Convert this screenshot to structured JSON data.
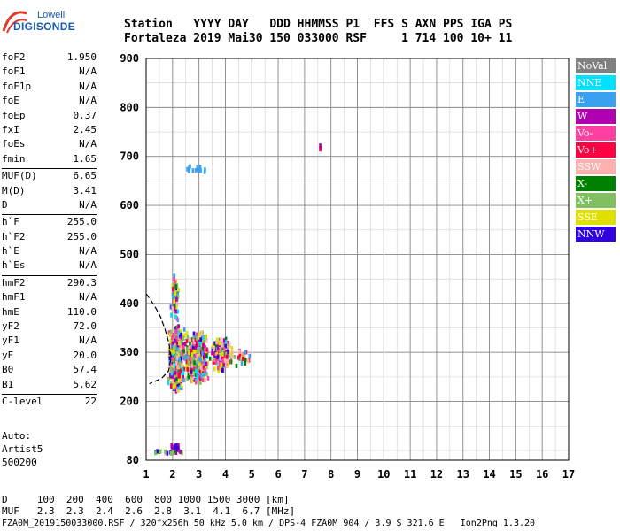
{
  "logo": {
    "line1": "Lowell",
    "line2": "DIGISONDE"
  },
  "header": {
    "labels": "Station   YYYY DAY   DDD HHMMSS P1  FFS S AXN PPS IGA PS",
    "values": "Fortaleza 2019 Mai30 150 033000 RSF     1 714 100 10+ 11"
  },
  "params": [
    {
      "group": [
        {
          "label": "foF2",
          "value": "1.950"
        },
        {
          "label": "foF1",
          "value": "N/A"
        },
        {
          "label": "foF1p",
          "value": "N/A"
        },
        {
          "label": "foE",
          "value": "N/A"
        },
        {
          "label": "foEp",
          "value": "0.37"
        },
        {
          "label": "fxI",
          "value": "2.45"
        },
        {
          "label": "foEs",
          "value": "N/A"
        },
        {
          "label": "fmin",
          "value": "1.65"
        }
      ]
    },
    {
      "group": [
        {
          "label": "MUF(D)",
          "value": "6.65"
        },
        {
          "label": "M(D)",
          "value": "3.41"
        },
        {
          "label": "D",
          "value": "N/A"
        }
      ]
    },
    {
      "group": [
        {
          "label": "h`F",
          "value": "255.0"
        },
        {
          "label": "h`F2",
          "value": "255.0"
        },
        {
          "label": "h`E",
          "value": "N/A"
        },
        {
          "label": "h`Es",
          "value": "N/A"
        }
      ]
    },
    {
      "group": [
        {
          "label": "hmF2",
          "value": "290.3"
        },
        {
          "label": "hmF1",
          "value": "N/A"
        },
        {
          "label": "hmE",
          "value": "110.0"
        },
        {
          "label": "yF2",
          "value": "72.0"
        },
        {
          "label": "yF1",
          "value": "N/A"
        },
        {
          "label": "yE",
          "value": "20.0"
        },
        {
          "label": "B0",
          "value": "57.4"
        },
        {
          "label": "B1",
          "value": "5.62"
        }
      ]
    },
    {
      "group": [
        {
          "label": "C-level",
          "value": "22"
        }
      ]
    }
  ],
  "auto": {
    "line1": "Auto:",
    "line2": "Artist5",
    "line3": "500200"
  },
  "legend": [
    {
      "label": "NoVal",
      "color": "#808080"
    },
    {
      "label": "NNE",
      "color": "#00e0ff"
    },
    {
      "label": "E",
      "color": "#3aa0f0"
    },
    {
      "label": "W",
      "color": "#b000b0"
    },
    {
      "label": "Vo-",
      "color": "#ff40a0"
    },
    {
      "label": "Vo+",
      "color": "#ff0040"
    },
    {
      "label": "SSW",
      "color": "#ffb0b0"
    },
    {
      "label": "X-",
      "color": "#008000"
    },
    {
      "label": "X+",
      "color": "#80c060"
    },
    {
      "label": "SSE",
      "color": "#e0e000"
    },
    {
      "label": "NNW",
      "color": "#3000e0"
    }
  ],
  "footer": {
    "d_row": "D     100  200  400  600  800 1000 1500 3000 [km]",
    "muf_row": "MUF   2.3  2.3  2.4  2.6  2.8  3.1  4.1  6.7 [MHz]",
    "file_line": "FZA0M_2019150033000.RSF / 320fx256h 50 kHz 5.0 km / DPS-4 FZA0M 904 / 3.9 S 321.6 E   Ion2Png 1.3.20"
  },
  "chart_data": {
    "type": "scatter",
    "xlim": [
      1,
      17
    ],
    "ylim": [
      80,
      900
    ],
    "xticks": [
      1,
      2,
      3,
      4,
      5,
      6,
      7,
      8,
      9,
      10,
      11,
      12,
      13,
      14,
      15,
      16,
      17
    ],
    "yticks": [
      80,
      200,
      300,
      400,
      500,
      600,
      700,
      800,
      900
    ],
    "grid": true,
    "legend_position": "right",
    "clusters": [
      {
        "x": [
          1.75,
          2.45
        ],
        "y": [
          220,
          360
        ],
        "count": 700
      },
      {
        "x": [
          2.3,
          3.4
        ],
        "y": [
          235,
          350
        ],
        "count": 550
      },
      {
        "x": [
          3.3,
          4.3
        ],
        "y": [
          265,
          335
        ],
        "count": 220
      },
      {
        "x": [
          1.85,
          2.25
        ],
        "y": [
          360,
          470
        ],
        "count": 70
      },
      {
        "x": [
          4.2,
          5.0
        ],
        "y": [
          275,
          310
        ],
        "count": 25
      }
    ],
    "features": [
      {
        "name": "E-trace",
        "x": [
          1.3,
          2.4
        ],
        "y": [
          98,
          104
        ],
        "colors": [
          "NNW",
          "W",
          "X+",
          "X-",
          "SSW"
        ]
      },
      {
        "name": "E-spread",
        "x": [
          1.9,
          2.2
        ],
        "y": [
          105,
          115
        ],
        "colors": [
          "W",
          "NNW"
        ]
      },
      {
        "name": "high-echo-E",
        "x": [
          2.5,
          3.2
        ],
        "y": [
          672,
          684
        ],
        "colors": [
          "E"
        ]
      },
      {
        "name": "isolated",
        "x": [
          7.55,
          7.55
        ],
        "y": [
          718,
          728
        ],
        "colors": [
          "Vo+",
          "W"
        ]
      }
    ],
    "profile": {
      "x": [
        1.0,
        1.3,
        1.55,
        1.72,
        1.85,
        1.95,
        1.85,
        1.6,
        1.3,
        1.12
      ],
      "y": [
        420,
        397,
        372,
        346,
        322,
        292,
        262,
        248,
        240,
        236
      ]
    }
  }
}
